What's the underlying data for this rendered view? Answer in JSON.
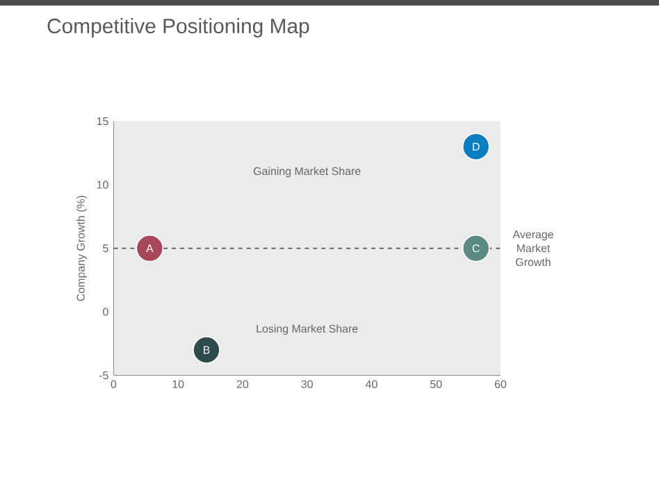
{
  "chart_data": {
    "type": "scatter",
    "title": "Competitive Positioning Map",
    "ylabel": "Company Growth (%)",
    "series": [
      {
        "name": "A",
        "color": "#a8475a",
        "x": [
          5.6
        ],
        "values": [
          5
        ]
      },
      {
        "name": "B",
        "color": "#2f4a4d",
        "x": [
          14.4
        ],
        "values": [
          -3
        ]
      },
      {
        "name": "C",
        "color": "#5b8a82",
        "x": [
          56.2
        ],
        "values": [
          5
        ]
      },
      {
        "name": "D",
        "color": "#0b7dc0",
        "x": [
          56.2
        ],
        "values": [
          13
        ]
      }
    ],
    "xlim": [
      0,
      60
    ],
    "xticks": [
      0,
      10,
      20,
      30,
      40,
      50,
      60
    ],
    "ylim": [
      -5,
      15
    ],
    "yticks": [
      -5,
      0,
      5,
      10,
      15
    ],
    "ref_lines": [
      {
        "axis": "y",
        "value": 5,
        "label": "Average Market Growth",
        "color": "#555555",
        "line_style": "dashed"
      }
    ],
    "annotations": [
      "Gaining Market Share",
      "Losing Market Share"
    ],
    "legend": false,
    "grid": false
  }
}
